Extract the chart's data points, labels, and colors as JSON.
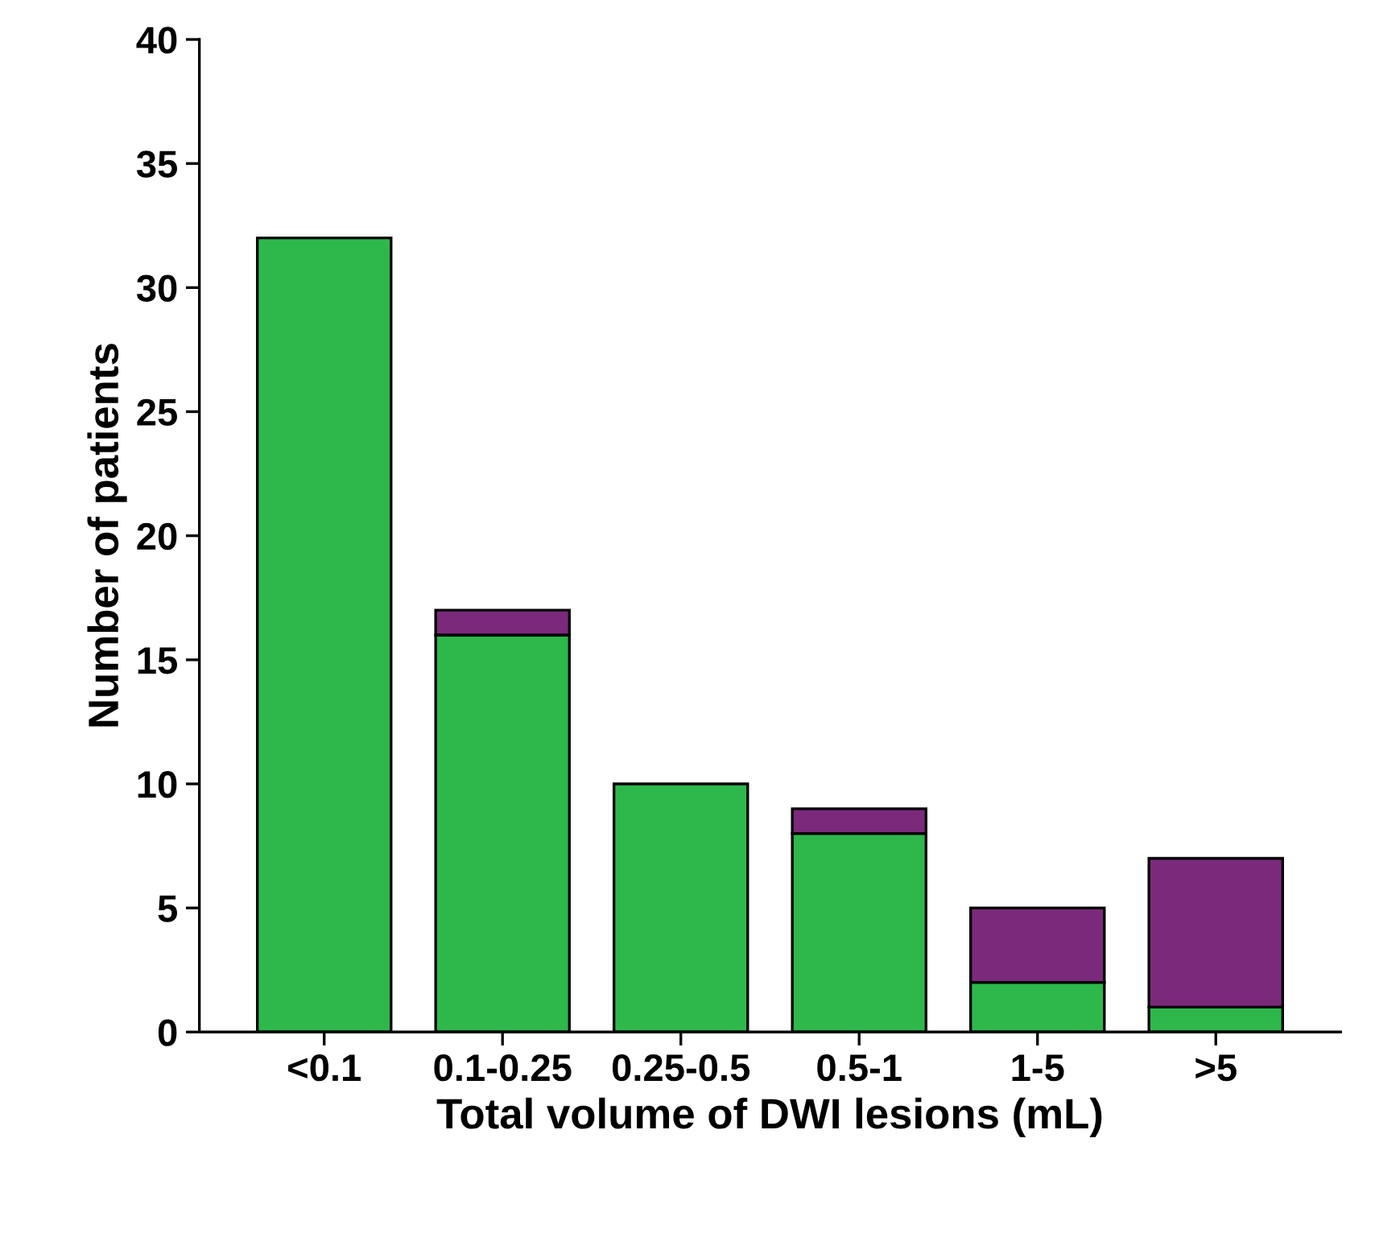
{
  "chart_data": {
    "type": "bar",
    "stacked": true,
    "xlabel": "Total volume of DWI lesions (mL)",
    "ylabel": "Number of patients",
    "categories": [
      "<0.1",
      "0.1-0.25",
      "0.25-0.5",
      "0.5-1",
      "1-5",
      ">5"
    ],
    "series": [
      {
        "color": "#2eb84b",
        "values": [
          32,
          16,
          10,
          8,
          2,
          1
        ]
      },
      {
        "color": "#7b2a7b",
        "values": [
          null,
          1,
          null,
          1,
          3,
          6
        ]
      }
    ],
    "ylim": [
      0,
      40
    ],
    "yticks": [
      0,
      5,
      10,
      15,
      20,
      25,
      30,
      35,
      40
    ],
    "grid": false,
    "legend": false
  }
}
